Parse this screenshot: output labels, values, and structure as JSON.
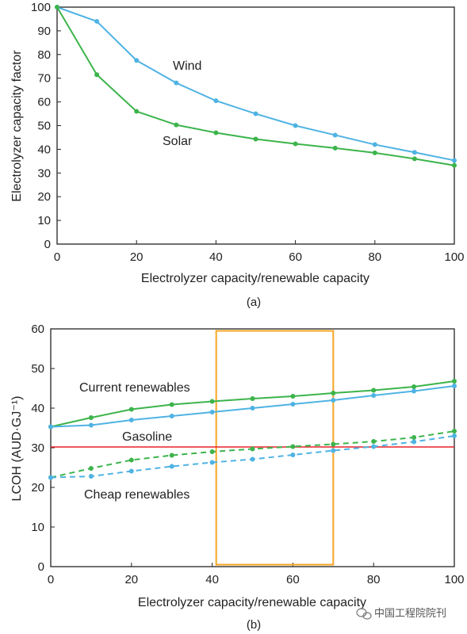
{
  "colors": {
    "green": "#3cb44b",
    "blue": "#4fb3e3",
    "red": "#e8222b",
    "orange": "#f5a623",
    "axis": "#222222"
  },
  "watermark": {
    "icon": "wechat-icon",
    "text": "中国工程院院刊"
  },
  "chart_data": [
    {
      "type": "line",
      "caption": "(a)",
      "xlabel": "Electrolyzer capacity/renewable capacity",
      "ylabel": "Electrolyzer capacity factor",
      "xlim": [
        0,
        100
      ],
      "ylim": [
        0,
        100
      ],
      "xticks": [
        0,
        20,
        40,
        60,
        80,
        100
      ],
      "yticks": [
        0,
        10,
        20,
        30,
        40,
        50,
        60,
        70,
        80,
        90,
        100
      ],
      "series": [
        {
          "name": "Wind",
          "color": "blue",
          "dashed": false,
          "x": [
            0,
            10,
            20,
            30,
            40,
            50,
            60,
            70,
            80,
            90,
            100
          ],
          "y": [
            100,
            94,
            77.5,
            68,
            60.5,
            55,
            50,
            46,
            42,
            38.7,
            35.3
          ]
        },
        {
          "name": "Solar",
          "color": "green",
          "dashed": false,
          "x": [
            0,
            10,
            20,
            30,
            40,
            50,
            60,
            70,
            80,
            90,
            100
          ],
          "y": [
            100,
            71.5,
            56,
            50.3,
            47,
            44.3,
            42.3,
            40.5,
            38.5,
            36,
            33.2
          ]
        }
      ]
    },
    {
      "type": "line",
      "caption": "(b)",
      "xlabel": "Electrolyzer capacity/renewable capacity",
      "ylabel": "LCOH (AUD·GJ⁻¹)",
      "xlim": [
        0,
        100
      ],
      "ylim": [
        0,
        60
      ],
      "xticks": [
        0,
        20,
        40,
        60,
        80,
        100
      ],
      "yticks": [
        0,
        10,
        20,
        30,
        40,
        50,
        60
      ],
      "annotations": [
        "Current renewables",
        "Gasoline",
        "Cheap renewables"
      ],
      "highlight_box": {
        "x": [
          41,
          70
        ],
        "y": [
          0.5,
          59.5
        ]
      },
      "hline": {
        "y": 30.2,
        "label": "Gasoline"
      },
      "series": [
        {
          "color": "green",
          "dashed": false,
          "x": [
            0,
            10,
            20,
            30,
            40,
            50,
            60,
            70,
            80,
            90,
            100
          ],
          "y": [
            35.3,
            37.6,
            39.7,
            40.9,
            41.7,
            42.4,
            43,
            43.8,
            44.5,
            45.4,
            46.8
          ]
        },
        {
          "color": "blue",
          "dashed": false,
          "x": [
            0,
            10,
            20,
            30,
            40,
            50,
            60,
            70,
            80,
            90,
            100
          ],
          "y": [
            35.3,
            35.7,
            37,
            38,
            39,
            40,
            41,
            42,
            43.2,
            44.3,
            45.6
          ]
        },
        {
          "color": "green",
          "dashed": true,
          "x": [
            0,
            10,
            20,
            30,
            40,
            50,
            60,
            70,
            80,
            90,
            100
          ],
          "y": [
            22.5,
            24.8,
            26.9,
            28.1,
            29,
            29.7,
            30.3,
            30.9,
            31.6,
            32.6,
            34.2
          ]
        },
        {
          "color": "blue",
          "dashed": true,
          "x": [
            0,
            10,
            20,
            30,
            40,
            50,
            60,
            70,
            80,
            90,
            100
          ],
          "y": [
            22.5,
            22.8,
            24.1,
            25.3,
            26.3,
            27.1,
            28.2,
            29.3,
            30.3,
            31.5,
            33
          ]
        }
      ]
    }
  ]
}
